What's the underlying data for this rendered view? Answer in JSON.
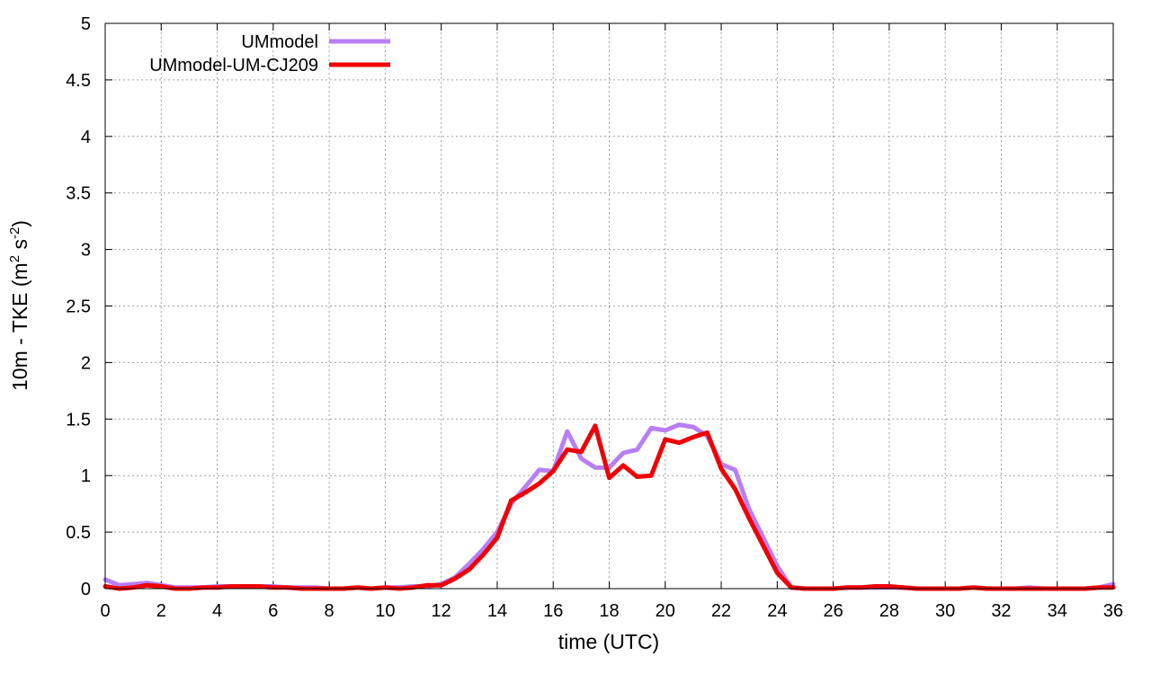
{
  "chart_data": {
    "type": "line",
    "xlabel": "time (UTC)",
    "ylabel_main": "10m - TKE (m",
    "ylabel_sup1": "2",
    "ylabel_mid": " s",
    "ylabel_sup2": "-2",
    "ylabel_end": ")",
    "xlim": [
      0,
      36
    ],
    "ylim": [
      0,
      5
    ],
    "x_ticks": [
      0,
      2,
      4,
      6,
      8,
      10,
      12,
      14,
      16,
      18,
      20,
      22,
      24,
      26,
      28,
      30,
      32,
      34,
      36
    ],
    "x_tick_labels": [
      "0",
      "2",
      "4",
      "6",
      "8",
      "10",
      "12",
      "14",
      "16",
      "18",
      "20",
      "22",
      "24",
      "26",
      "28",
      "30",
      "32",
      "34",
      "36"
    ],
    "y_ticks": [
      0,
      0.5,
      1,
      1.5,
      2,
      2.5,
      3,
      3.5,
      4,
      4.5,
      5
    ],
    "y_tick_labels": [
      "0",
      "0.5",
      "1",
      "1.5",
      "2",
      "2.5",
      "3",
      "3.5",
      "4",
      "4.5",
      "5"
    ],
    "grid": true,
    "legend_position": "top-left",
    "series": [
      {
        "name": "UMmodel",
        "color": "#b87ff5",
        "x": [
          0,
          0.5,
          1,
          1.5,
          2,
          2.5,
          3,
          3.5,
          4,
          4.5,
          5,
          5.5,
          6,
          6.5,
          7,
          7.5,
          8,
          8.5,
          9,
          9.5,
          10,
          10.5,
          11,
          11.5,
          12,
          12.5,
          13,
          13.5,
          14,
          14.5,
          15,
          15.5,
          16,
          16.5,
          17,
          17.5,
          18,
          18.5,
          19,
          19.5,
          20,
          20.5,
          21,
          21.5,
          22,
          22.5,
          23,
          23.5,
          24,
          24.5,
          25,
          25.5,
          26,
          26.5,
          27,
          27.5,
          28,
          28.5,
          29,
          29.5,
          30,
          30.5,
          31,
          31.5,
          32,
          32.5,
          33,
          33.5,
          34,
          34.5,
          35,
          35.5,
          36
        ],
        "y": [
          0.08,
          0.03,
          0.04,
          0.05,
          0.03,
          0.01,
          0.01,
          0.01,
          0.02,
          0.02,
          0.02,
          0.02,
          0.02,
          0.01,
          0.01,
          0.01,
          0,
          0,
          0.01,
          0,
          0.01,
          0.01,
          0.02,
          0.02,
          0.04,
          0.1,
          0.22,
          0.35,
          0.5,
          0.75,
          0.9,
          1.05,
          1.04,
          1.39,
          1.15,
          1.07,
          1.07,
          1.2,
          1.23,
          1.42,
          1.4,
          1.45,
          1.43,
          1.35,
          1.1,
          1.05,
          0.7,
          0.45,
          0.2,
          0.01,
          0,
          0,
          0,
          0.01,
          0.01,
          0.01,
          0.01,
          0.01,
          0,
          0,
          0,
          0,
          0.01,
          0,
          0,
          0,
          0.01,
          0,
          0,
          0,
          0,
          0.01,
          0.04
        ]
      },
      {
        "name": "UMmodel-UM-CJ209",
        "color": "#f00000",
        "x": [
          0,
          0.5,
          1,
          1.5,
          2,
          2.5,
          3,
          3.5,
          4,
          4.5,
          5,
          5.5,
          6,
          6.5,
          7,
          7.5,
          8,
          8.5,
          9,
          9.5,
          10,
          10.5,
          11,
          11.5,
          12,
          12.5,
          13,
          13.5,
          14,
          14.5,
          15,
          15.5,
          16,
          16.5,
          17,
          17.5,
          18,
          18.5,
          19,
          19.5,
          20,
          20.5,
          21,
          21.5,
          22,
          22.5,
          23,
          23.5,
          24,
          24.5,
          25,
          25.5,
          26,
          26.5,
          27,
          27.5,
          28,
          28.5,
          29,
          29.5,
          30,
          30.5,
          31,
          31.5,
          32,
          32.5,
          33,
          33.5,
          34,
          34.5,
          35,
          35.5,
          36
        ],
        "y": [
          0.02,
          0,
          0.01,
          0.03,
          0.02,
          0,
          0,
          0.01,
          0.01,
          0.02,
          0.02,
          0.02,
          0.01,
          0.01,
          0,
          0,
          0,
          0,
          0.01,
          0,
          0.01,
          0,
          0.01,
          0.03,
          0.03,
          0.09,
          0.17,
          0.3,
          0.45,
          0.78,
          0.85,
          0.93,
          1.04,
          1.23,
          1.21,
          1.44,
          0.98,
          1.09,
          0.99,
          1.0,
          1.32,
          1.29,
          1.34,
          1.38,
          1.06,
          0.88,
          0.62,
          0.38,
          0.14,
          0.01,
          0,
          0,
          0,
          0.01,
          0.01,
          0.02,
          0.02,
          0.01,
          0,
          0,
          0,
          0,
          0.01,
          0,
          0,
          0,
          0,
          0,
          0,
          0,
          0,
          0.01,
          0.01
        ]
      }
    ]
  }
}
